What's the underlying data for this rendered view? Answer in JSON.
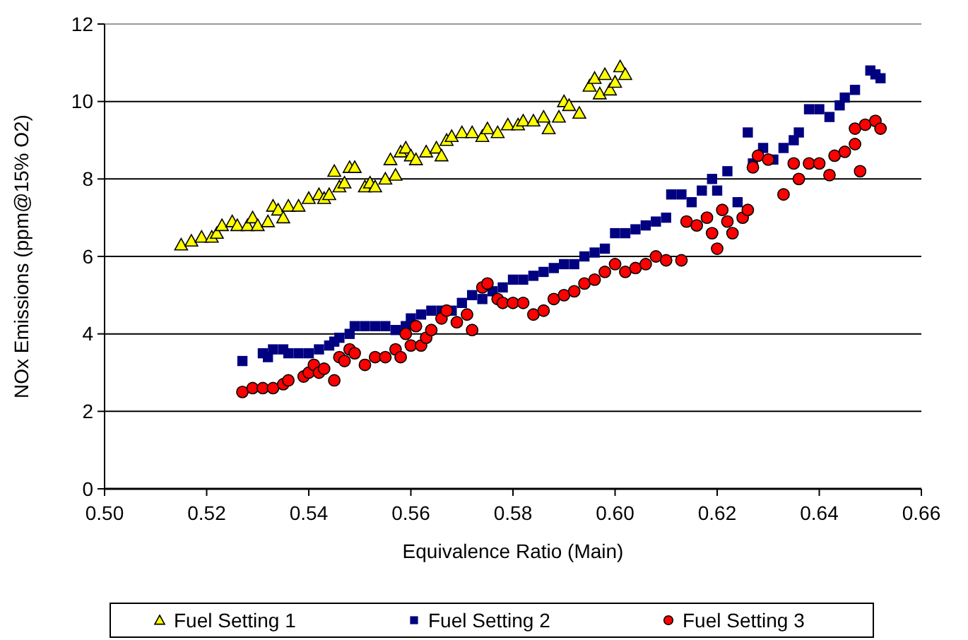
{
  "chart_data": {
    "type": "scatter",
    "xlabel": "Equivalence Ratio (Main)",
    "ylabel": "NOx Emissions (ppm@15% O2)",
    "xlim": [
      0.5,
      0.66
    ],
    "ylim": [
      0,
      12
    ],
    "xticks": [
      {
        "value": 0.5,
        "label": "0.50"
      },
      {
        "value": 0.52,
        "label": "0.52"
      },
      {
        "value": 0.54,
        "label": "0.54"
      },
      {
        "value": 0.56,
        "label": "0.56"
      },
      {
        "value": 0.58,
        "label": "0.58"
      },
      {
        "value": 0.6,
        "label": "0.60"
      },
      {
        "value": 0.62,
        "label": "0.62"
      },
      {
        "value": 0.64,
        "label": "0.64"
      },
      {
        "value": 0.66,
        "label": "0.66"
      }
    ],
    "yticks": [
      0,
      2,
      4,
      6,
      8,
      10,
      12
    ],
    "grid": "y",
    "legend": "bottom",
    "series": [
      {
        "name": "Fuel Setting 1",
        "color": "#ffff00",
        "marker": "triangle",
        "x": [
          0.515,
          0.517,
          0.519,
          0.521,
          0.522,
          0.523,
          0.525,
          0.526,
          0.528,
          0.529,
          0.53,
          0.532,
          0.533,
          0.534,
          0.535,
          0.536,
          0.538,
          0.54,
          0.542,
          0.543,
          0.544,
          0.545,
          0.546,
          0.547,
          0.548,
          0.549,
          0.551,
          0.552,
          0.553,
          0.555,
          0.556,
          0.557,
          0.558,
          0.559,
          0.56,
          0.561,
          0.563,
          0.565,
          0.566,
          0.567,
          0.568,
          0.57,
          0.572,
          0.574,
          0.575,
          0.577,
          0.579,
          0.581,
          0.582,
          0.584,
          0.586,
          0.587,
          0.589,
          0.59,
          0.591,
          0.593,
          0.595,
          0.596,
          0.597,
          0.598,
          0.599,
          0.6,
          0.601,
          0.602
        ],
        "values": [
          6.3,
          6.4,
          6.5,
          6.5,
          6.6,
          6.8,
          6.9,
          6.8,
          6.8,
          7.0,
          6.8,
          6.9,
          7.3,
          7.2,
          7.0,
          7.3,
          7.3,
          7.5,
          7.6,
          7.5,
          7.6,
          8.2,
          7.8,
          7.9,
          8.3,
          8.3,
          7.8,
          7.9,
          7.8,
          8.0,
          8.5,
          8.1,
          8.7,
          8.8,
          8.6,
          8.5,
          8.7,
          8.8,
          8.6,
          9.0,
          9.1,
          9.2,
          9.2,
          9.1,
          9.3,
          9.2,
          9.4,
          9.4,
          9.5,
          9.5,
          9.6,
          9.3,
          9.6,
          10.0,
          9.9,
          9.7,
          10.4,
          10.6,
          10.2,
          10.7,
          10.3,
          10.5,
          10.9,
          10.7
        ]
      },
      {
        "name": "Fuel Setting 2",
        "color": "#000080",
        "marker": "square",
        "x": [
          0.527,
          0.531,
          0.532,
          0.533,
          0.535,
          0.536,
          0.538,
          0.54,
          0.542,
          0.544,
          0.545,
          0.546,
          0.548,
          0.549,
          0.551,
          0.553,
          0.555,
          0.557,
          0.559,
          0.56,
          0.562,
          0.564,
          0.566,
          0.568,
          0.57,
          0.572,
          0.574,
          0.576,
          0.578,
          0.58,
          0.582,
          0.584,
          0.586,
          0.588,
          0.59,
          0.592,
          0.594,
          0.596,
          0.598,
          0.6,
          0.602,
          0.604,
          0.606,
          0.608,
          0.61,
          0.611,
          0.613,
          0.615,
          0.617,
          0.619,
          0.62,
          0.622,
          0.624,
          0.626,
          0.627,
          0.629,
          0.631,
          0.633,
          0.635,
          0.636,
          0.638,
          0.64,
          0.642,
          0.644,
          0.645,
          0.647,
          0.65,
          0.651,
          0.652
        ],
        "values": [
          3.3,
          3.5,
          3.4,
          3.6,
          3.6,
          3.5,
          3.5,
          3.5,
          3.6,
          3.7,
          3.8,
          3.9,
          4.0,
          4.2,
          4.2,
          4.2,
          4.2,
          4.1,
          4.2,
          4.4,
          4.5,
          4.6,
          4.6,
          4.6,
          4.8,
          5.0,
          4.9,
          5.1,
          5.2,
          5.4,
          5.4,
          5.5,
          5.6,
          5.7,
          5.8,
          5.8,
          6.0,
          6.1,
          6.2,
          6.6,
          6.6,
          6.7,
          6.8,
          6.9,
          7.0,
          7.6,
          7.6,
          7.4,
          7.7,
          8.0,
          7.7,
          8.2,
          7.4,
          9.2,
          8.4,
          8.8,
          8.5,
          8.8,
          9.0,
          9.2,
          9.8,
          9.8,
          9.6,
          9.9,
          10.1,
          10.3,
          10.8,
          10.7,
          10.6
        ]
      },
      {
        "name": "Fuel Setting 3",
        "color": "#ff0000",
        "marker": "circle",
        "x": [
          0.527,
          0.529,
          0.531,
          0.533,
          0.535,
          0.536,
          0.539,
          0.54,
          0.541,
          0.542,
          0.543,
          0.545,
          0.546,
          0.547,
          0.548,
          0.549,
          0.551,
          0.553,
          0.555,
          0.557,
          0.558,
          0.559,
          0.56,
          0.561,
          0.562,
          0.563,
          0.564,
          0.566,
          0.567,
          0.569,
          0.571,
          0.572,
          0.574,
          0.575,
          0.577,
          0.578,
          0.58,
          0.582,
          0.584,
          0.586,
          0.588,
          0.59,
          0.592,
          0.594,
          0.596,
          0.598,
          0.6,
          0.602,
          0.604,
          0.606,
          0.608,
          0.61,
          0.613,
          0.614,
          0.616,
          0.618,
          0.619,
          0.62,
          0.621,
          0.622,
          0.623,
          0.625,
          0.626,
          0.627,
          0.628,
          0.63,
          0.633,
          0.635,
          0.636,
          0.638,
          0.64,
          0.642,
          0.643,
          0.645,
          0.647,
          0.647,
          0.648,
          0.649,
          0.651,
          0.652
        ],
        "values": [
          2.5,
          2.6,
          2.6,
          2.6,
          2.7,
          2.8,
          2.9,
          3.0,
          3.2,
          3.0,
          3.1,
          2.8,
          3.4,
          3.3,
          3.6,
          3.5,
          3.2,
          3.4,
          3.4,
          3.6,
          3.4,
          4.0,
          3.7,
          4.2,
          3.7,
          3.9,
          4.1,
          4.4,
          4.6,
          4.3,
          4.5,
          4.1,
          5.2,
          5.3,
          4.9,
          4.8,
          4.8,
          4.8,
          4.5,
          4.6,
          4.9,
          5.0,
          5.1,
          5.3,
          5.4,
          5.6,
          5.8,
          5.6,
          5.7,
          5.8,
          6.0,
          5.9,
          5.9,
          6.9,
          6.8,
          7.0,
          6.6,
          6.2,
          7.2,
          6.9,
          6.6,
          7.0,
          7.2,
          8.3,
          8.6,
          8.5,
          7.6,
          8.4,
          8.0,
          8.4,
          8.4,
          8.1,
          8.6,
          8.7,
          8.9,
          9.3,
          8.2,
          9.4,
          9.5,
          9.3
        ]
      }
    ]
  }
}
